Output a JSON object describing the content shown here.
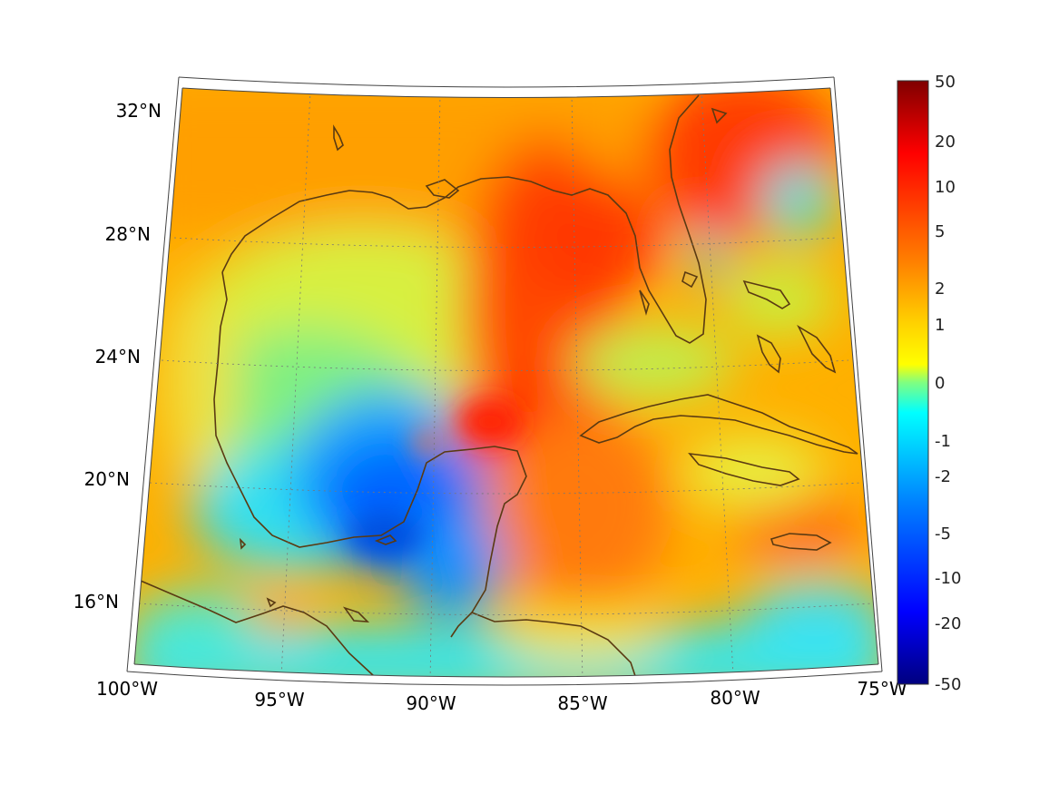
{
  "map": {
    "longitude_labels": [
      "100°W",
      "95°W",
      "90°W",
      "85°W",
      "80°W",
      "75°W"
    ],
    "latitude_labels": [
      "32°N",
      "28°N",
      "24°N",
      "20°N",
      "16°N"
    ],
    "coastline_color": "#5a3a12",
    "gridline_color": "#777777",
    "region": "Gulf of Mexico / Caribbean"
  },
  "colorbar": {
    "tick_labels": [
      "50",
      "20",
      "10",
      "5",
      "2",
      "1",
      "0",
      "-1",
      "-2",
      "-5",
      "-10",
      "-20",
      "-50"
    ],
    "colormap": "jet",
    "max": 50,
    "min": -50
  }
}
